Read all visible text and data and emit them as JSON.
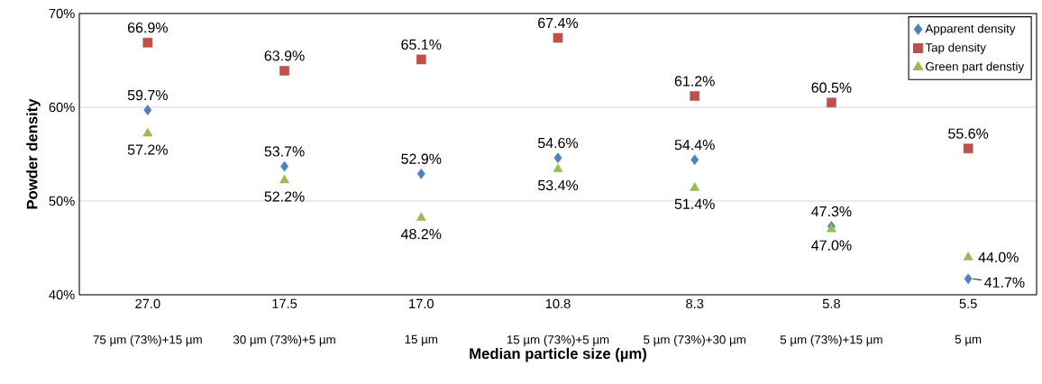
{
  "chart_data": {
    "type": "scatter",
    "xlabel": "Median particle size (µm)",
    "ylabel": "Powder density",
    "categories": [
      "27.0",
      "17.5",
      "17.0",
      "10.8",
      "8.3",
      "5.8",
      "5.5"
    ],
    "series": [
      {
        "name": "Apparent density",
        "color": "#4f81bd",
        "marker": "diamond",
        "values": [
          59.7,
          53.7,
          52.9,
          54.6,
          54.4,
          47.3,
          41.7
        ],
        "value_labels": [
          "59.7%",
          "53.7%",
          "52.9%",
          "54.6%",
          "54.4%",
          "47.3%",
          "41.7%"
        ]
      },
      {
        "name": "Tap density",
        "color": "#c0504d",
        "marker": "square",
        "values": [
          66.9,
          63.9,
          65.1,
          67.4,
          61.2,
          60.5,
          55.6
        ],
        "value_labels": [
          "66.9%",
          "63.9%",
          "65.1%",
          "67.4%",
          "61.2%",
          "60.5%",
          "55.6%"
        ]
      },
      {
        "name": "Green part denstiy",
        "color": "#9bbb59",
        "marker": "triangle",
        "values": [
          57.2,
          52.2,
          48.2,
          53.4,
          51.4,
          47.0,
          44.0
        ],
        "value_labels": [
          "57.2%",
          "52.2%",
          "48.2%",
          "53.4%",
          "51.4%",
          "47.0%",
          "44.0%"
        ]
      }
    ],
    "ylim": [
      40,
      70
    ],
    "yticks": [
      {
        "value": 40,
        "label": "40%"
      },
      {
        "value": 50,
        "label": "50%"
      },
      {
        "value": 60,
        "label": "60%"
      },
      {
        "value": 70,
        "label": "70%"
      }
    ],
    "grid": "y",
    "legend": "top right",
    "annotations": [
      "75 µm (73%)+15 µm",
      "30 µm (73%)+5 µm",
      "15 µm",
      "15 µm (73%)+5 µm",
      "5 µm (73%)+30 µm",
      "5 µm (73%)+15 µm",
      "5 µm"
    ]
  }
}
